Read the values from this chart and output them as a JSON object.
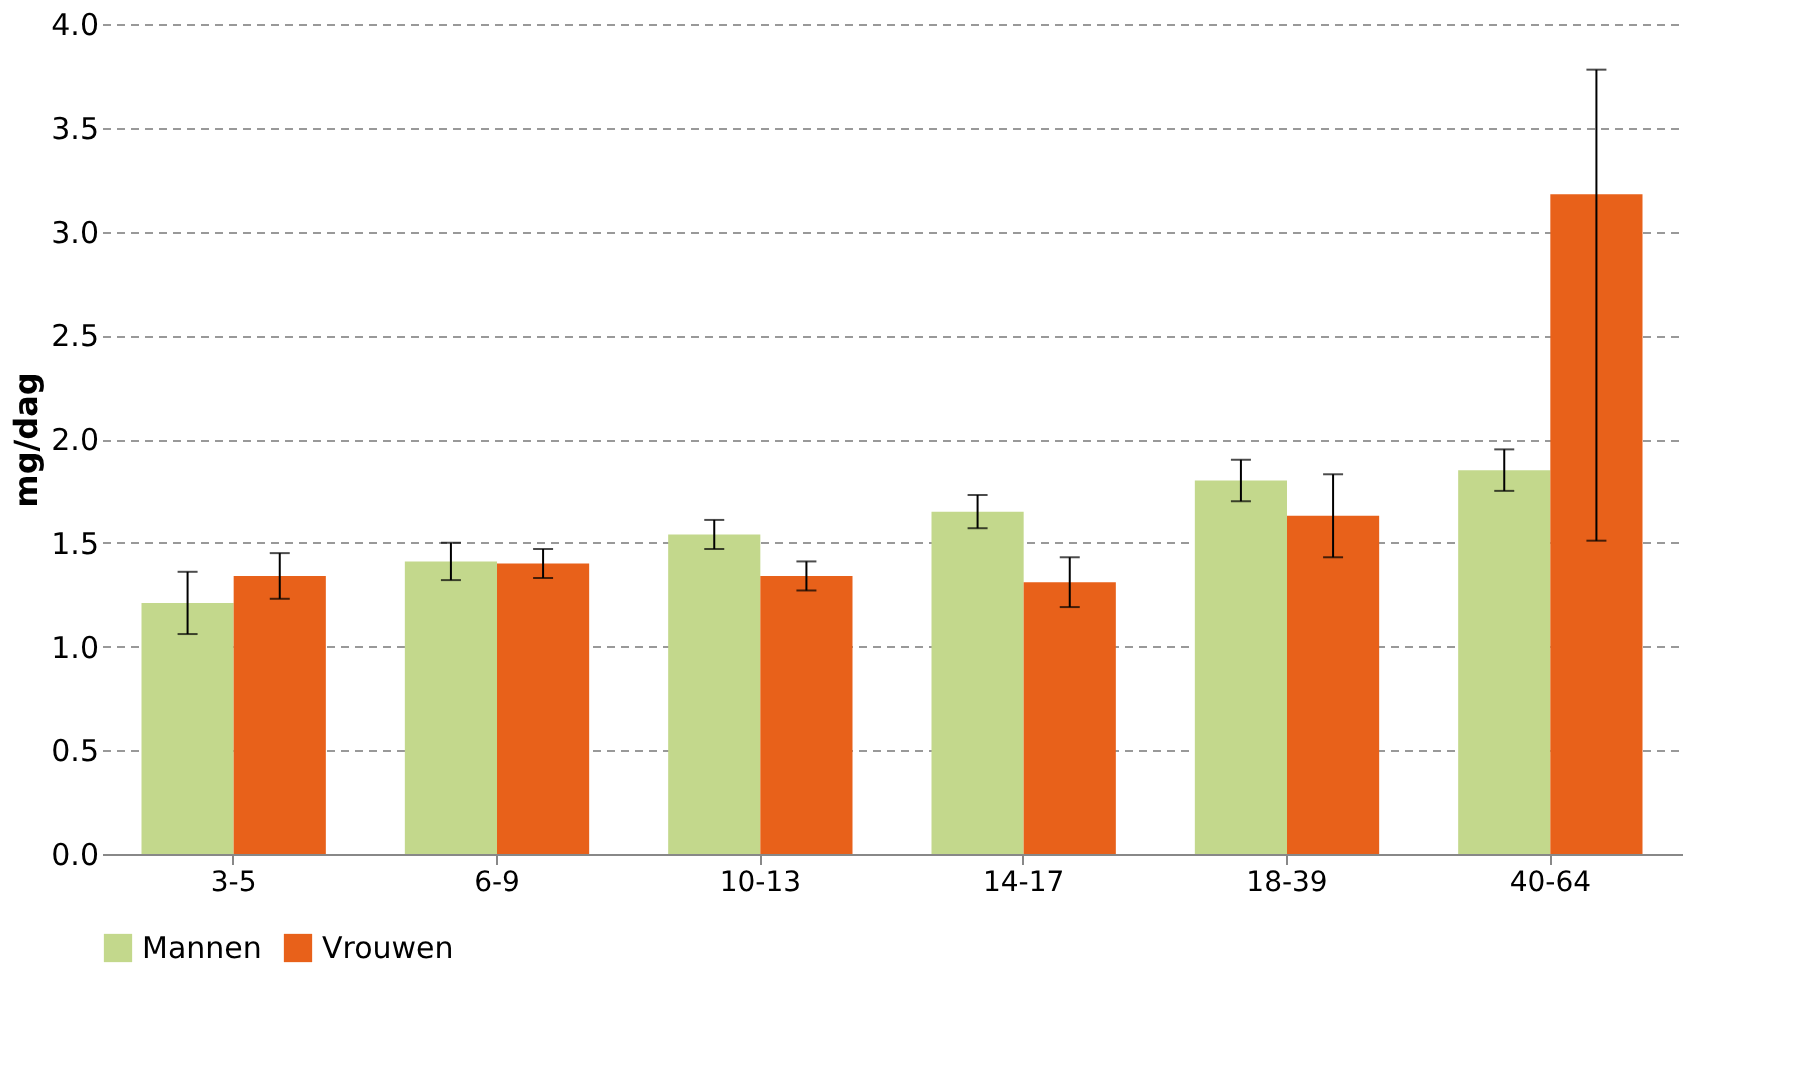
{
  "chart_data": {
    "type": "bar",
    "ylabel": "mg/dag",
    "categories": [
      "3-5",
      "6-9",
      "10-13",
      "14-17",
      "18-39",
      "40-64"
    ],
    "series": [
      {
        "name": "Mannen",
        "color": "#c3d88c",
        "values": [
          1.21,
          1.41,
          1.54,
          1.65,
          1.8,
          1.85
        ],
        "errors": [
          0.15,
          0.09,
          0.07,
          0.08,
          0.1,
          0.1
        ]
      },
      {
        "name": "Vrouwen",
        "color": "#e8611a",
        "values": [
          1.34,
          1.4,
          1.34,
          1.31,
          1.63,
          3.18
        ],
        "errors": [
          0.11,
          0.07,
          0.07,
          0.12,
          0.2,
          [
            1.51,
            3.78
          ]
        ]
      }
    ],
    "ylim": [
      0,
      4
    ],
    "yticks": [
      {
        "value": 0,
        "label": "0.0"
      },
      {
        "value": 0.5,
        "label": "0.5"
      },
      {
        "value": 1,
        "label": "1.0"
      },
      {
        "value": 1.5,
        "label": "1.5"
      },
      {
        "value": 2,
        "label": "2.0"
      },
      {
        "value": 2.5,
        "label": "2.5"
      },
      {
        "value": 3,
        "label": "3.0"
      },
      {
        "value": 3.5,
        "label": "3.5"
      },
      {
        "value": 4,
        "label": "4.0"
      }
    ],
    "grid": "y",
    "legend": "bottom"
  }
}
